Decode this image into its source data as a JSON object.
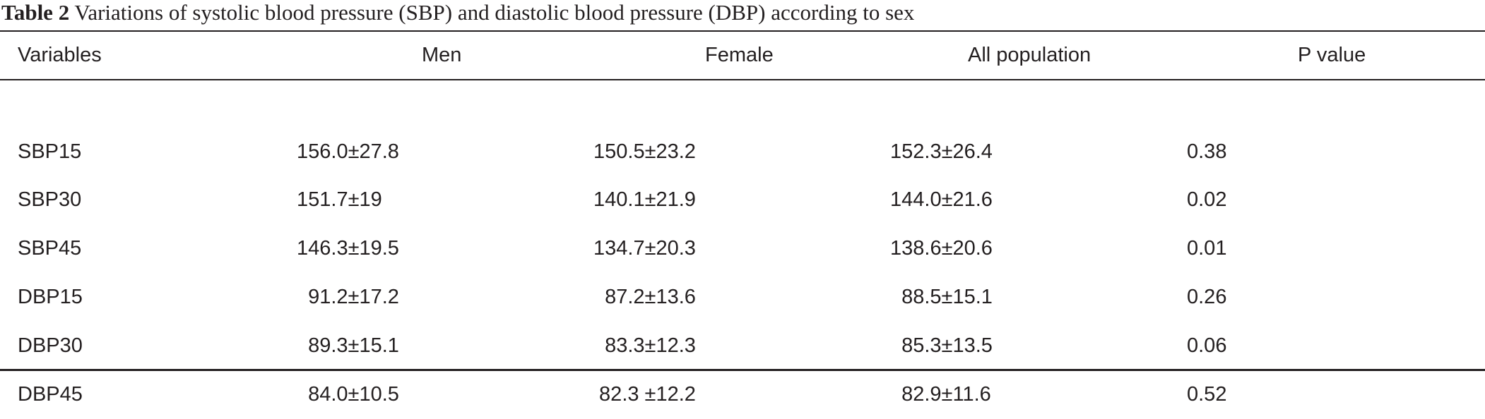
{
  "caption": {
    "label": "Table 2",
    "text": " Variations of systolic blood pressure (SBP) and diastolic blood pressure (DBP) according to sex"
  },
  "table": {
    "headers": [
      "Variables",
      "Men",
      "Female",
      "All population",
      "P value"
    ],
    "rows": [
      [
        "SBP15",
        "156.0±27.8",
        "150.5±23.2",
        "152.3±26.4",
        "0.38"
      ],
      [
        "SBP30",
        "151.7±19",
        "140.1±21.9",
        "144.0±21.6",
        "0.02"
      ],
      [
        "SBP45",
        "146.3±19.5",
        "134.7±20.3",
        "138.6±20.6",
        "0.01"
      ],
      [
        "DBP15",
        "  91.2±17.2",
        "  87.2±13.6",
        "  88.5±15.1",
        "0.26"
      ],
      [
        "DBP30",
        "  89.3±15.1",
        "  83.3±12.3",
        "  85.3±13.5",
        "0.06"
      ],
      [
        "DBP45",
        "  84.0±10.5",
        " 82.3 ±12.2",
        "  82.9±11.6",
        "0.52"
      ]
    ]
  }
}
